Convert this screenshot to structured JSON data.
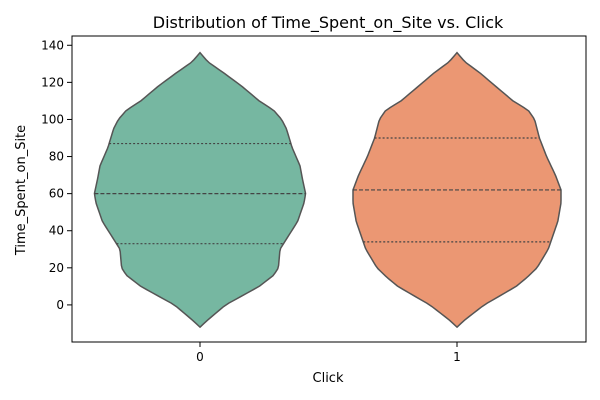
{
  "chart_data": {
    "type": "violin",
    "title": "Distribution of Time_Spent_on_Site vs. Click",
    "xlabel": "Click",
    "ylabel": "Time_Spent_on_Site",
    "categories": [
      "0",
      "1"
    ],
    "ylim": [
      -20,
      145
    ],
    "yticks": [
      0,
      20,
      40,
      60,
      80,
      100,
      120,
      140
    ],
    "grid": false,
    "legend": "none",
    "series": [
      {
        "category": "0",
        "color": "#76b7a1",
        "range": [
          -12,
          136
        ],
        "quartiles": {
          "q1": 33,
          "median": 60,
          "q3": 87
        },
        "density_profile": [
          [
            -12,
            0.0
          ],
          [
            -8,
            0.1
          ],
          [
            0,
            0.32
          ],
          [
            10,
            0.74
          ],
          [
            16,
            0.92
          ],
          [
            20,
            0.98
          ],
          [
            30,
            1.0
          ],
          [
            45,
            1.22
          ],
          [
            55,
            1.3
          ],
          [
            60,
            1.32
          ],
          [
            68,
            1.28
          ],
          [
            75,
            1.25
          ],
          [
            85,
            1.15
          ],
          [
            95,
            1.08
          ],
          [
            100,
            1.02
          ],
          [
            105,
            0.92
          ],
          [
            110,
            0.74
          ],
          [
            118,
            0.52
          ],
          [
            125,
            0.3
          ],
          [
            131,
            0.1
          ],
          [
            136,
            0.0
          ]
        ]
      },
      {
        "category": "1",
        "color": "#eb9773",
        "range": [
          -12,
          136
        ],
        "quartiles": {
          "q1": 34,
          "median": 62,
          "q3": 90
        },
        "density_profile": [
          [
            -12,
            0.0
          ],
          [
            -8,
            0.1
          ],
          [
            0,
            0.34
          ],
          [
            10,
            0.74
          ],
          [
            15,
            0.88
          ],
          [
            20,
            1.0
          ],
          [
            30,
            1.14
          ],
          [
            45,
            1.26
          ],
          [
            55,
            1.3
          ],
          [
            62,
            1.3
          ],
          [
            70,
            1.23
          ],
          [
            80,
            1.12
          ],
          [
            90,
            1.03
          ],
          [
            100,
            0.97
          ],
          [
            105,
            0.89
          ],
          [
            110,
            0.7
          ],
          [
            118,
            0.48
          ],
          [
            125,
            0.29
          ],
          [
            131,
            0.1
          ],
          [
            136,
            0.0
          ]
        ]
      }
    ]
  }
}
